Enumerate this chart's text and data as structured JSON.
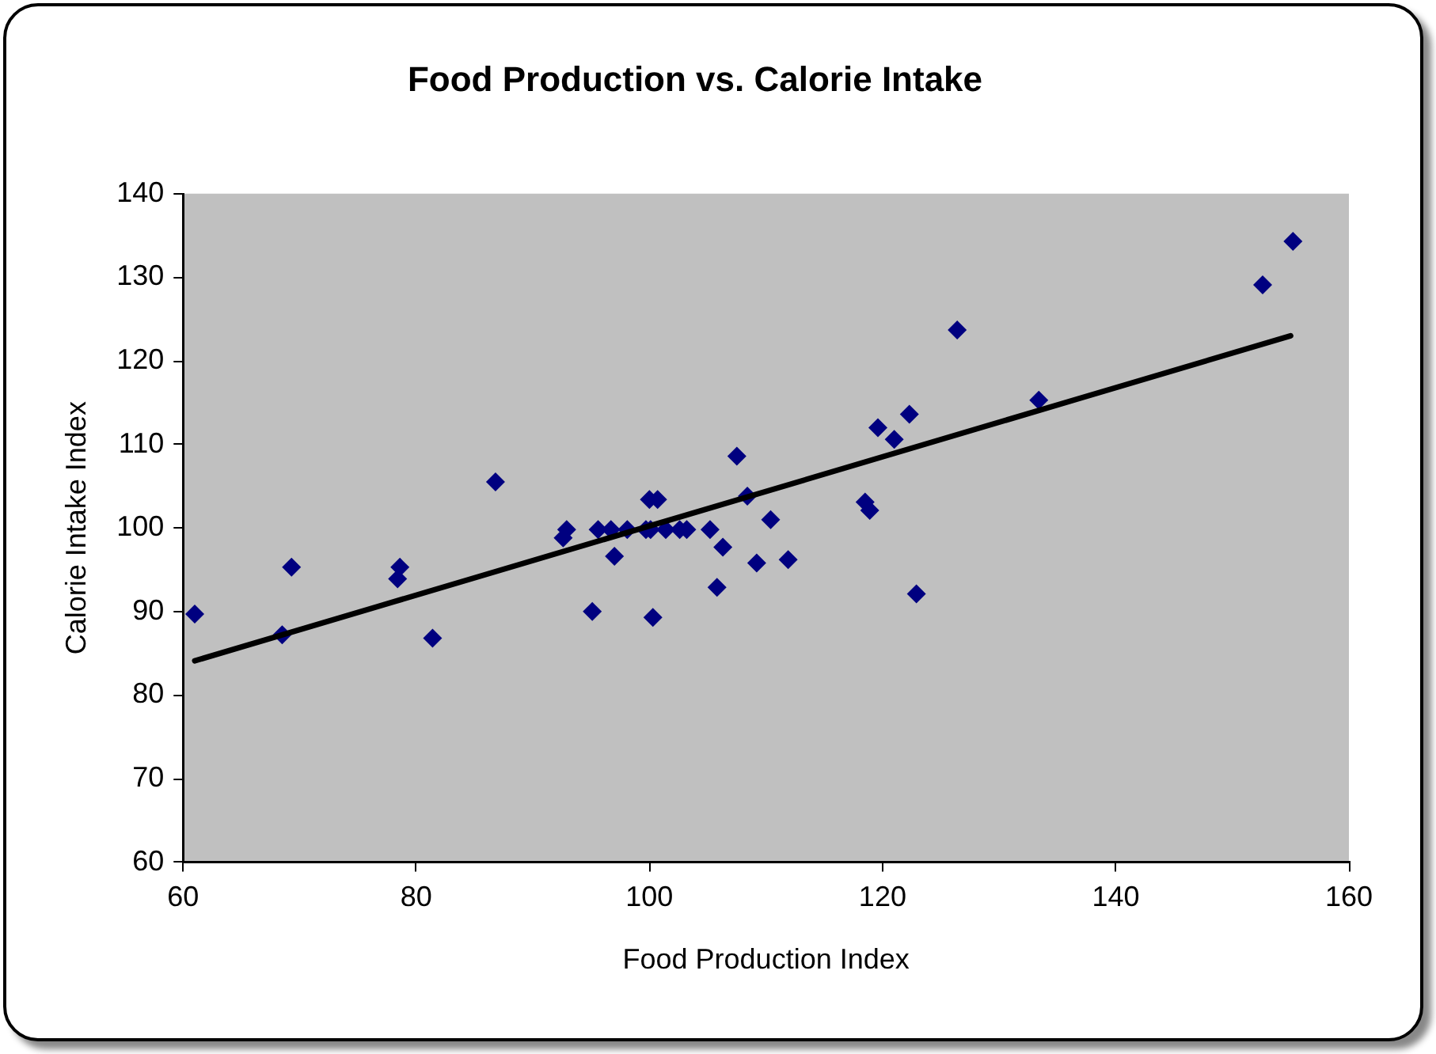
{
  "chart_data": {
    "type": "scatter",
    "title": "Food Production vs. Calorie Intake",
    "xlabel": "Food Production Index",
    "ylabel": "Calorie Intake Index",
    "xlim": [
      60,
      160
    ],
    "xticks": [
      60,
      80,
      100,
      120,
      140,
      160
    ],
    "ylim": [
      60,
      140
    ],
    "yticks": [
      60,
      70,
      80,
      90,
      100,
      110,
      120,
      130,
      140
    ],
    "grid": false,
    "legend": false,
    "marker": "diamond",
    "series": [
      {
        "color": "#000080",
        "x": [
          61,
          68.5,
          69.3,
          78.4,
          78.6,
          81.4,
          86.8,
          92.6,
          92.9,
          95.1,
          95.6,
          96.7,
          97.0,
          98.1,
          99.7,
          100.0,
          100.1,
          100.3,
          100.7,
          101.4,
          102.6,
          103.2,
          105.2,
          105.8,
          106.3,
          107.5,
          108.4,
          109.2,
          110.4,
          111.9,
          118.5,
          118.9,
          119.6,
          121.0,
          122.3,
          122.9,
          126.4,
          133.4,
          152.6,
          155.2
        ],
        "values": [
          89.7,
          87.2,
          95.3,
          93.9,
          95.3,
          86.8,
          105.5,
          98.8,
          99.8,
          90.0,
          99.8,
          99.8,
          96.6,
          99.8,
          99.8,
          103.4,
          99.8,
          89.3,
          103.4,
          99.8,
          99.8,
          99.8,
          99.8,
          92.9,
          97.7,
          108.6,
          103.8,
          95.8,
          101.0,
          96.2,
          103.1,
          102.1,
          112.0,
          110.6,
          113.6,
          92.1,
          123.7,
          115.3,
          129.1,
          134.3
        ]
      },
      {
        "type": "line",
        "color": "#000000",
        "x": [
          61,
          155
        ],
        "values": [
          84.1,
          123.0
        ],
        "marker": "none",
        "line_style": "solid"
      }
    ]
  }
}
